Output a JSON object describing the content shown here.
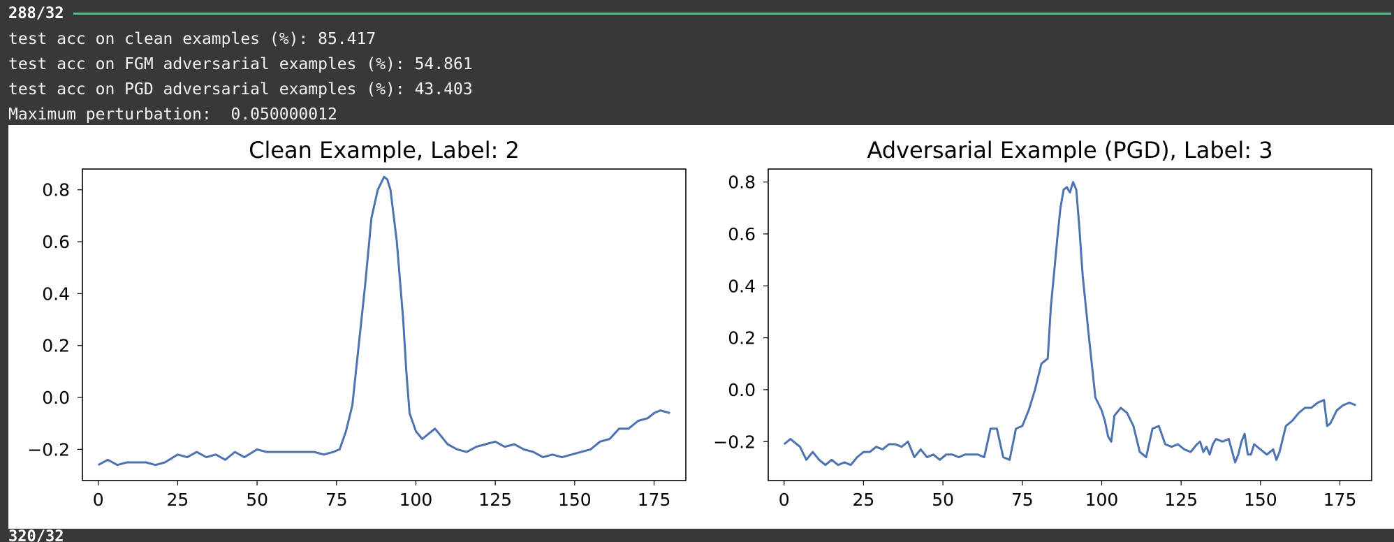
{
  "progress_top": {
    "label": "288/32",
    "fraction": 1.0,
    "bar_color": "#66b88a"
  },
  "log_lines": [
    "test acc on clean examples (%): 85.417",
    "test acc on FGM adversarial examples (%): 54.861",
    "test acc on PGD adversarial examples (%): 43.403",
    "Maximum perturbation:  0.050000012"
  ],
  "progress_bottom": {
    "label": "320/32"
  },
  "chart_data": [
    {
      "type": "line",
      "title": "Clean Example, Label: 2",
      "xlabel": "",
      "ylabel": "",
      "xlim": [
        -5,
        185
      ],
      "ylim": [
        -0.32,
        0.88
      ],
      "xticks": [
        0,
        25,
        50,
        75,
        100,
        125,
        150,
        175
      ],
      "xtick_labels": [
        "0",
        "25",
        "50",
        "75",
        "100",
        "125",
        "150",
        "175"
      ],
      "yticks": [
        -0.2,
        0.0,
        0.2,
        0.4,
        0.6,
        0.8
      ],
      "ytick_labels": [
        "−0.2",
        "0.0",
        "0.2",
        "0.4",
        "0.6",
        "0.8"
      ],
      "color": "#4c72b0",
      "series": [
        {
          "x": [
            0,
            3,
            6,
            9,
            12,
            15,
            18,
            21,
            25,
            28,
            31,
            34,
            37,
            40,
            43,
            46,
            50,
            53,
            56,
            59,
            62,
            65,
            68,
            71,
            74,
            76,
            78,
            80,
            82,
            84,
            86,
            88,
            90,
            91,
            92,
            94,
            96,
            97,
            98,
            100,
            102,
            104,
            106,
            108,
            110,
            113,
            116,
            119,
            122,
            125,
            128,
            131,
            134,
            137,
            140,
            143,
            146,
            149,
            152,
            155,
            158,
            161,
            164,
            167,
            170,
            173,
            175,
            177,
            180
          ],
          "y": [
            -0.26,
            -0.24,
            -0.26,
            -0.25,
            -0.25,
            -0.25,
            -0.26,
            -0.25,
            -0.22,
            -0.23,
            -0.21,
            -0.23,
            -0.22,
            -0.24,
            -0.21,
            -0.23,
            -0.2,
            -0.21,
            -0.21,
            -0.21,
            -0.21,
            -0.21,
            -0.21,
            -0.22,
            -0.21,
            -0.2,
            -0.13,
            -0.03,
            0.2,
            0.43,
            0.69,
            0.8,
            0.85,
            0.84,
            0.8,
            0.6,
            0.3,
            0.1,
            -0.06,
            -0.13,
            -0.16,
            -0.14,
            -0.12,
            -0.15,
            -0.18,
            -0.2,
            -0.21,
            -0.19,
            -0.18,
            -0.17,
            -0.19,
            -0.18,
            -0.2,
            -0.21,
            -0.23,
            -0.22,
            -0.23,
            -0.22,
            -0.21,
            -0.2,
            -0.17,
            -0.16,
            -0.12,
            -0.12,
            -0.09,
            -0.08,
            -0.06,
            -0.05,
            -0.06
          ]
        }
      ]
    },
    {
      "type": "line",
      "title": "Adversarial Example (PGD), Label: 3",
      "xlabel": "",
      "ylabel": "",
      "xlim": [
        -5,
        185
      ],
      "ylim": [
        -0.35,
        0.85
      ],
      "xticks": [
        0,
        25,
        50,
        75,
        100,
        125,
        150,
        175
      ],
      "xtick_labels": [
        "0",
        "25",
        "50",
        "75",
        "100",
        "125",
        "150",
        "175"
      ],
      "yticks": [
        -0.2,
        0.0,
        0.2,
        0.4,
        0.6,
        0.8
      ],
      "ytick_labels": [
        "−0.2",
        "0.0",
        "0.2",
        "0.4",
        "0.6",
        "0.8"
      ],
      "color": "#4c72b0",
      "series": [
        {
          "x": [
            0,
            2,
            3,
            5,
            7,
            9,
            11,
            13,
            15,
            17,
            19,
            21,
            23,
            25,
            27,
            29,
            31,
            33,
            35,
            37,
            39,
            41,
            43,
            45,
            47,
            49,
            51,
            53,
            55,
            57,
            59,
            61,
            63,
            65,
            67,
            69,
            71,
            73,
            75,
            77,
            79,
            81,
            83,
            84,
            85,
            86,
            87,
            88,
            89,
            90,
            91,
            92,
            93,
            94,
            96,
            98,
            100,
            101,
            102,
            103,
            104,
            106,
            108,
            110,
            112,
            113,
            114,
            116,
            118,
            120,
            122,
            124,
            126,
            128,
            130,
            131,
            132,
            133,
            134,
            135,
            136,
            138,
            140,
            142,
            143,
            144,
            145,
            146,
            147,
            148,
            150,
            152,
            154,
            155,
            156,
            158,
            160,
            162,
            164,
            166,
            168,
            170,
            171,
            172,
            174,
            176,
            178,
            180
          ],
          "y": [
            -0.21,
            -0.19,
            -0.2,
            -0.22,
            -0.27,
            -0.24,
            -0.27,
            -0.29,
            -0.27,
            -0.29,
            -0.28,
            -0.29,
            -0.26,
            -0.24,
            -0.24,
            -0.22,
            -0.23,
            -0.21,
            -0.21,
            -0.22,
            -0.2,
            -0.26,
            -0.23,
            -0.26,
            -0.25,
            -0.27,
            -0.25,
            -0.25,
            -0.26,
            -0.25,
            -0.25,
            -0.25,
            -0.26,
            -0.15,
            -0.15,
            -0.26,
            -0.27,
            -0.15,
            -0.14,
            -0.08,
            0.0,
            0.1,
            0.12,
            0.32,
            0.45,
            0.58,
            0.7,
            0.77,
            0.78,
            0.76,
            0.8,
            0.77,
            0.62,
            0.44,
            0.2,
            -0.03,
            -0.08,
            -0.12,
            -0.18,
            -0.2,
            -0.1,
            -0.07,
            -0.09,
            -0.14,
            -0.24,
            -0.25,
            -0.26,
            -0.15,
            -0.14,
            -0.21,
            -0.22,
            -0.21,
            -0.23,
            -0.24,
            -0.21,
            -0.2,
            -0.24,
            -0.22,
            -0.25,
            -0.21,
            -0.19,
            -0.2,
            -0.19,
            -0.28,
            -0.25,
            -0.2,
            -0.17,
            -0.25,
            -0.25,
            -0.21,
            -0.23,
            -0.25,
            -0.23,
            -0.27,
            -0.24,
            -0.14,
            -0.12,
            -0.09,
            -0.07,
            -0.07,
            -0.05,
            -0.04,
            -0.14,
            -0.13,
            -0.08,
            -0.06,
            -0.05,
            -0.06
          ]
        }
      ]
    }
  ]
}
